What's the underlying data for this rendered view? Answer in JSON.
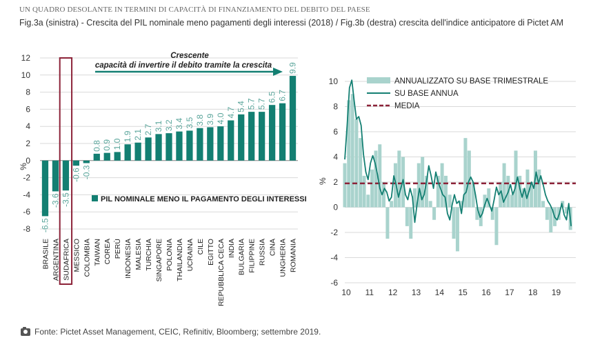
{
  "header": {
    "kicker": "UN QUADRO DESOLANTE IN TERMINI DI CAPACITÀ DI FINANZIAMENTO DEL DEBITO DEL PAESE",
    "subtitle": "Fig.3a (sinistra) - Crescita del PIL nominale meno pagamenti degli interessi (2018) / Fig.3b (destra) crescita dell'indice anticipatore di Pictet AM"
  },
  "footer": {
    "source": "Fonte: Pictet Asset Management, CEIC, Refinitiv, Bloomberg; settembre 2019.",
    "icon": "camera-icon"
  },
  "colors": {
    "teal": "#137f72",
    "light_teal": "#a9d3cd",
    "maroon": "#8c2238",
    "grid": "#d9d9d9"
  },
  "chart_data": [
    {
      "type": "bar",
      "ylabel": "%",
      "ylim": [
        -8,
        12
      ],
      "yticks": [
        -8,
        -6,
        -4,
        -2,
        0,
        2,
        4,
        6,
        8,
        10,
        12
      ],
      "categories": [
        "BRASILE",
        "ARGENTINA",
        "SUDAFRICA",
        "MESSICO",
        "COLOMBIA",
        "TAIWAN",
        "COREA",
        "PERÙ",
        "INDONESIA",
        "MALESIA",
        "TURCHIA",
        "SINGAPORE",
        "POLONIA",
        "THAILANDIA",
        "UCRAINA",
        "CILE",
        "EGITTO",
        "REPUBBLICA CECA",
        "INDIA",
        "BULGARIA",
        "FILIPPINE",
        "RUSSIA",
        "CINA",
        "UNGHERIA",
        "ROMANIA"
      ],
      "values": [
        -6.5,
        -3.6,
        -3.5,
        -0.6,
        -0.3,
        0.8,
        0.9,
        1.0,
        1.9,
        2.1,
        2.7,
        3.1,
        3.2,
        3.4,
        3.5,
        3.8,
        3.9,
        4.0,
        4.7,
        5.4,
        5.7,
        5.7,
        6.5,
        6.7,
        9.9
      ],
      "value_labels": [
        "-6.5",
        "-3.6",
        "-3.5",
        "-0.6",
        "-0.3",
        "0.8",
        "0.9",
        "1.0",
        "1.9",
        "2.1",
        "2.7",
        "3.1",
        "3.2",
        "3.4",
        "3.5",
        "3.8",
        "3.9",
        "4.0",
        "4.7",
        "5.4",
        "5.7",
        "5.7",
        "6.5",
        "6.7",
        "9.9"
      ],
      "highlighted": "SUDAFRICA",
      "legend": "PIL NOMINALE MENO IL PAGAMENTO DEGLI INTERESSI",
      "annotation": {
        "line1": "Crescente",
        "line2": "capacità di invertire il debito tramite la crescita"
      },
      "grid": true
    },
    {
      "type": "bar+line",
      "ylabel": "%",
      "ylim": [
        -6,
        10
      ],
      "yticks": [
        -6,
        -4,
        -2,
        0,
        2,
        4,
        6,
        8,
        10
      ],
      "xlim": [
        2010,
        2019.9
      ],
      "xticks": [
        10,
        11,
        12,
        13,
        14,
        15,
        16,
        17,
        18,
        19
      ],
      "grid": true,
      "legend_position": "top-left",
      "series": [
        {
          "name": "ANNUALIZZATO SU BASE TRIMESTRALE",
          "kind": "bar",
          "x": [
            2010.0,
            2010.17,
            2010.33,
            2010.5,
            2010.67,
            2010.83,
            2011.0,
            2011.17,
            2011.33,
            2011.5,
            2011.67,
            2011.83,
            2012.0,
            2012.17,
            2012.33,
            2012.5,
            2012.67,
            2012.83,
            2013.0,
            2013.17,
            2013.33,
            2013.5,
            2013.67,
            2013.83,
            2014.0,
            2014.17,
            2014.33,
            2014.5,
            2014.67,
            2014.83,
            2015.0,
            2015.17,
            2015.33,
            2015.5,
            2015.67,
            2015.83,
            2016.0,
            2016.17,
            2016.33,
            2016.5,
            2016.67,
            2016.83,
            2017.0,
            2017.17,
            2017.33,
            2017.5,
            2017.67,
            2017.83,
            2018.0,
            2018.17,
            2018.33,
            2018.5,
            2018.67,
            2018.83,
            2019.0,
            2019.17,
            2019.33,
            2019.5,
            2019.67
          ],
          "values": [
            3.5,
            8.5,
            9.0,
            7.0,
            5.5,
            2.5,
            1.0,
            3.0,
            4.5,
            5.0,
            2.0,
            -2.5,
            0.5,
            3.5,
            4.5,
            4.0,
            -1.5,
            -2.5,
            1.5,
            3.5,
            4.0,
            2.5,
            0.5,
            -1.0,
            2.5,
            3.5,
            2.5,
            1.0,
            -2.5,
            -3.5,
            0.5,
            5.5,
            4.5,
            2.0,
            -1.0,
            -1.5,
            1.0,
            1.5,
            -1.0,
            -3.0,
            2.0,
            3.5,
            2.5,
            1.0,
            4.5,
            2.5,
            1.5,
            3.0,
            2.0,
            4.5,
            3.0,
            0.5,
            -1.0,
            -2.0,
            -1.5,
            -1.0,
            0.5,
            -0.5,
            -1.8
          ]
        },
        {
          "name": "SU BASE ANNUA",
          "kind": "line",
          "x": [
            2010.0,
            2010.1,
            2010.2,
            2010.3,
            2010.4,
            2010.5,
            2010.6,
            2010.7,
            2010.8,
            2010.9,
            2011.0,
            2011.1,
            2011.2,
            2011.3,
            2011.4,
            2011.5,
            2011.6,
            2011.7,
            2011.8,
            2011.9,
            2012.0,
            2012.1,
            2012.2,
            2012.3,
            2012.4,
            2012.5,
            2012.6,
            2012.7,
            2012.8,
            2012.9,
            2013.0,
            2013.1,
            2013.2,
            2013.3,
            2013.4,
            2013.5,
            2013.6,
            2013.7,
            2013.8,
            2013.9,
            2014.0,
            2014.1,
            2014.2,
            2014.3,
            2014.4,
            2014.5,
            2014.6,
            2014.7,
            2014.8,
            2014.9,
            2015.0,
            2015.1,
            2015.2,
            2015.3,
            2015.4,
            2015.5,
            2015.6,
            2015.7,
            2015.8,
            2015.9,
            2016.0,
            2016.1,
            2016.2,
            2016.3,
            2016.4,
            2016.5,
            2016.6,
            2016.7,
            2016.8,
            2016.9,
            2017.0,
            2017.1,
            2017.2,
            2017.3,
            2017.4,
            2017.5,
            2017.6,
            2017.7,
            2017.8,
            2017.9,
            2018.0,
            2018.1,
            2018.2,
            2018.3,
            2018.4,
            2018.5,
            2018.6,
            2018.7,
            2018.8,
            2018.9,
            2019.0,
            2019.1,
            2019.2,
            2019.3,
            2019.4,
            2019.5,
            2019.6,
            2019.7
          ],
          "values": [
            3.8,
            6.5,
            9.5,
            10.1,
            8.5,
            7.0,
            7.2,
            6.5,
            4.2,
            2.8,
            2.2,
            3.5,
            4.1,
            3.5,
            2.6,
            1.5,
            1.0,
            1.5,
            1.2,
            0.5,
            0.8,
            2.5,
            1.8,
            0.8,
            1.5,
            2.2,
            1.0,
            0.6,
            1.5,
            0.8,
            -1.2,
            0.3,
            1.5,
            0.6,
            1.0,
            2.0,
            3.3,
            2.5,
            1.5,
            2.8,
            2.0,
            1.5,
            1.0,
            0.8,
            -0.5,
            -1.0,
            0.2,
            1.0,
            0.3,
            0.5,
            -0.5,
            1.0,
            1.2,
            2.0,
            2.4,
            2.0,
            1.0,
            -0.2,
            -0.8,
            -0.5,
            0.2,
            0.7,
            0.2,
            -0.3,
            0.6,
            1.6,
            1.0,
            1.3,
            0.4,
            0.8,
            1.2,
            1.8,
            1.0,
            1.5,
            2.4,
            1.5,
            0.8,
            1.5,
            0.7,
            1.3,
            2.0,
            1.5,
            2.8,
            1.9,
            2.5,
            1.8,
            1.0,
            0.5,
            0.2,
            -0.2,
            -0.8,
            -1.0,
            -0.5,
            0.3,
            -0.6,
            -1.0,
            0.3,
            -1.5
          ]
        },
        {
          "name": "MEDIA",
          "kind": "hline",
          "value": 1.9
        }
      ]
    }
  ]
}
